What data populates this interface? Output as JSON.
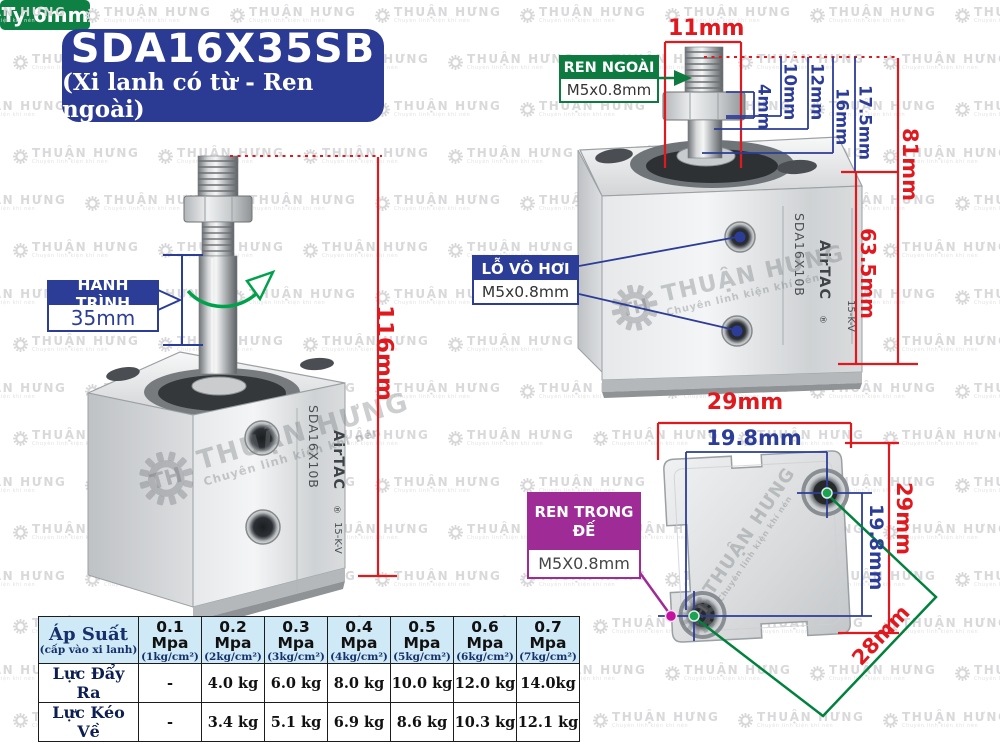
{
  "title": {
    "model": "SDA16X35SB",
    "subtitle": "(Xi lanh có từ - Ren ngoài)"
  },
  "watermark": {
    "initials": "TH",
    "brand": "THUẬN HƯNG",
    "tagline": "Chuyên linh kiện khí nén"
  },
  "product_marking": {
    "model": "SDA16X10B",
    "brand": "AirTAC",
    "registered": "®",
    "code": "15-K-V"
  },
  "left_view": {
    "stroke_label": "HÀNH TRÌNH",
    "stroke_value": "35mm",
    "rod_label": "Ty 6mm",
    "total_length": "116mm"
  },
  "front_view": {
    "external_thread_label": "REN NGOÀI",
    "external_thread_value": "M5x0.8mm",
    "air_port_label": "LỖ VÔ HƠI",
    "air_port_value": "M5x0.8mm",
    "dim_rod_width": "11mm",
    "dim_4": "4mm",
    "dim_10": "10mm",
    "dim_12": "12mm",
    "dim_16": "16mm",
    "dim_17_5": "17.5mm",
    "dim_body_height": "63.5mm",
    "dim_total_height": "81mm"
  },
  "bottom_view": {
    "internal_thread_label_1": "REN TRONG",
    "internal_thread_label_2": "ĐẾ",
    "internal_thread_value": "M5X0.8mm",
    "dim_width": "29mm",
    "dim_hole_spacing_x": "19.8mm",
    "dim_height": "29mm",
    "dim_hole_spacing_y": "19.8mm",
    "dim_diagonal": "28mm"
  },
  "table": {
    "header": [
      {
        "title": "Áp Suất",
        "sub": "(cấp vào xi lanh)"
      },
      {
        "title": "0.1 Mpa",
        "sub": "(1kg/cm²)"
      },
      {
        "title": "0.2 Mpa",
        "sub": "(2kg/cm²)"
      },
      {
        "title": "0.3 Mpa",
        "sub": "(3kg/cm²)"
      },
      {
        "title": "0.4 Mpa",
        "sub": "(4kg/cm²)"
      },
      {
        "title": "0.5 Mpa",
        "sub": "(5kg/cm²)"
      },
      {
        "title": "0.6 Mpa",
        "sub": "(6kg/cm²)"
      },
      {
        "title": "0.7 Mpa",
        "sub": "(7kg/cm²)"
      }
    ],
    "rows": [
      {
        "label": "Lực Đẩy Ra",
        "values": [
          "-",
          "4.0 kg",
          "6.0 kg",
          "8.0 kg",
          "10.0 kg",
          "12.0 kg",
          "14.0kg"
        ]
      },
      {
        "label": "Lực Kéo Về",
        "values": [
          "-",
          "3.4 kg",
          "5.1 kg",
          "6.9 kg",
          "8.6 kg",
          "10.3 kg",
          "12.1 kg"
        ]
      }
    ]
  },
  "colors": {
    "navy": "#2c3d98",
    "red": "#e0191f",
    "green": "#0d7a40",
    "bright_green": "#00a14b",
    "purple": "#9e2b96",
    "magenta": "#c311a0",
    "table_header_bg": "#cfe9f6"
  }
}
